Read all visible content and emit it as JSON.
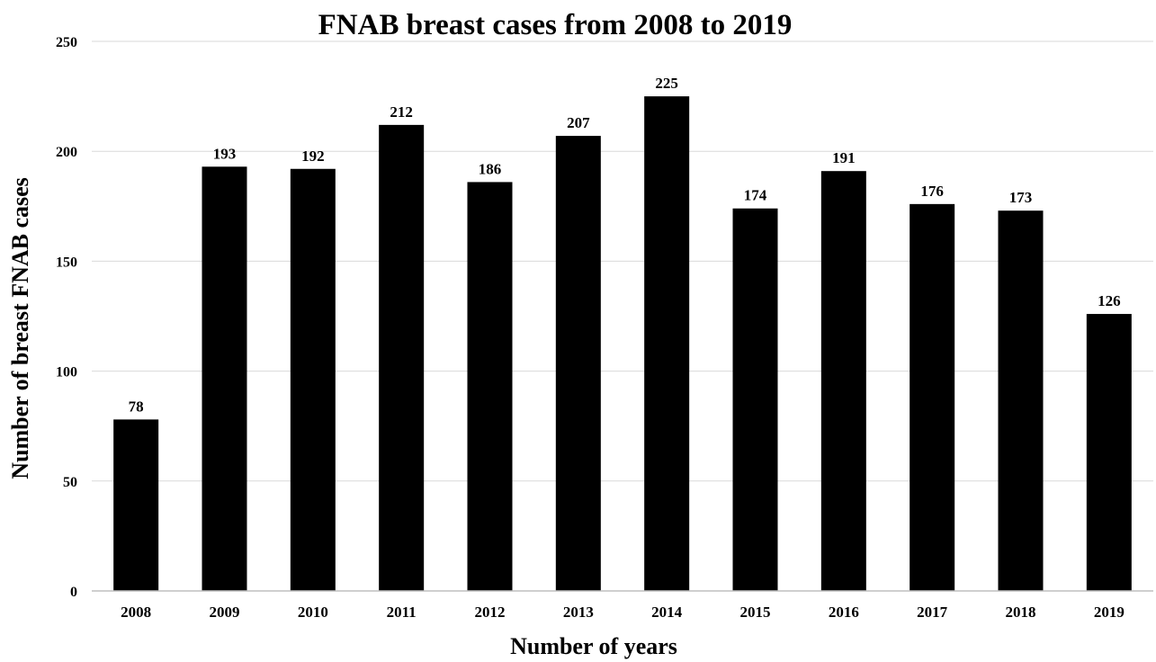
{
  "chart_data": {
    "type": "bar",
    "title": "FNAB breast cases from 2008 to 2019",
    "xlabel": "Number of years",
    "ylabel": "Number of breast FNAB cases",
    "categories": [
      "2008",
      "2009",
      "2010",
      "2011",
      "2012",
      "2013",
      "2014",
      "2015",
      "2016",
      "2017",
      "2018",
      "2019"
    ],
    "values": [
      78,
      193,
      192,
      212,
      186,
      207,
      225,
      174,
      191,
      176,
      173,
      126
    ],
    "ylim": [
      0,
      250
    ],
    "yticks": [
      "0",
      "50",
      "100",
      "150",
      "200",
      "250"
    ],
    "grid": true,
    "legend": "none",
    "data_labels": true,
    "colors": {
      "bar": "#000000",
      "grid": "#d9d9d9",
      "axis": "#bfbfbf",
      "text": "#000000"
    }
  }
}
